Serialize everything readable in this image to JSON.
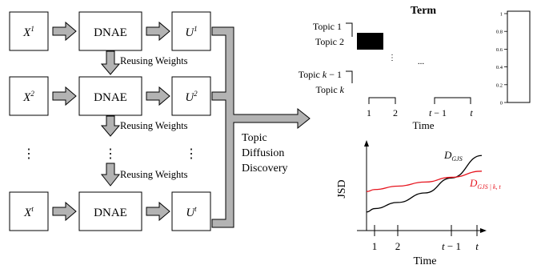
{
  "pipeline": {
    "rows": [
      {
        "input": "X",
        "input_sup": "1",
        "model": "DNAE",
        "output": "U",
        "output_sup": "1"
      },
      {
        "input": "X",
        "input_sup": "2",
        "model": "DNAE",
        "output": "U",
        "output_sup": "2"
      },
      {
        "input": "X",
        "input_sup": "t",
        "model": "DNAE",
        "output": "U",
        "output_sup": "t"
      }
    ],
    "reuse_label": "Reusing Weights",
    "ellipsis": "⋮",
    "discovery_label": [
      "Topic",
      "Diffusion",
      "Discovery"
    ]
  },
  "matrix": {
    "title": "Term",
    "topics": [
      {
        "label": "Topic 1"
      },
      {
        "label": "Topic 2"
      },
      {
        "label": "Topic ",
        "italic": "k",
        "suffix": " − 1"
      },
      {
        "label": "Topic ",
        "italic": "k",
        "suffix": ""
      }
    ],
    "dots": "...",
    "vdots": "⋮",
    "time_ticks": [
      "1",
      "2"
    ],
    "time_ticks_end": [
      {
        "italic": "t",
        "suffix": " − 1"
      },
      {
        "italic": "t",
        "suffix": ""
      }
    ],
    "xlabel": "Time"
  },
  "colorbar": {
    "ticks": [
      "1",
      "0.8",
      "0.6",
      "0.4",
      "0.2",
      "0"
    ]
  },
  "chart_data": {
    "type": "line",
    "ylabel": "JSD",
    "xlabel": "Time",
    "x_tick_labels": [
      "1",
      "2",
      "t − 1",
      "t"
    ],
    "series": [
      {
        "name": "D_GJS",
        "color": "#000000",
        "label_base": "D",
        "label_sub": "GJS",
        "values": [
          0.12,
          0.17,
          0.26,
          0.4,
          0.62,
          0.95
        ]
      },
      {
        "name": "D_GJS | k, t",
        "color": "#e6141e",
        "label_base": "D",
        "label_sub": "GJS | k, t",
        "values": [
          0.42,
          0.45,
          0.5,
          0.56,
          0.63,
          0.72
        ]
      }
    ],
    "x": [
      0,
      1,
      2,
      3,
      4,
      5
    ],
    "grid": false
  }
}
